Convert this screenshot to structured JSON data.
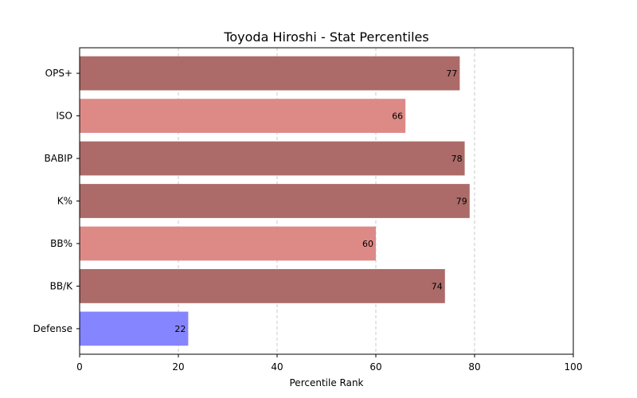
{
  "chart_data": {
    "type": "bar",
    "orientation": "horizontal",
    "title": "Toyoda Hiroshi - Stat Percentiles",
    "xlabel": "Percentile Rank",
    "ylabel": "",
    "xlim": [
      0,
      100
    ],
    "xticks": [
      0,
      20,
      40,
      60,
      80,
      100
    ],
    "grid": "x-dashed",
    "categories": [
      "OPS+",
      "ISO",
      "BABIP",
      "K%",
      "BB%",
      "BB/K",
      "Defense"
    ],
    "values": [
      77,
      66,
      78,
      79,
      60,
      74,
      22
    ],
    "colors": [
      "#ac6b68",
      "#dd8a87",
      "#ac6b68",
      "#ac6b68",
      "#dd8a87",
      "#ac6b68",
      "#8585ff"
    ]
  }
}
